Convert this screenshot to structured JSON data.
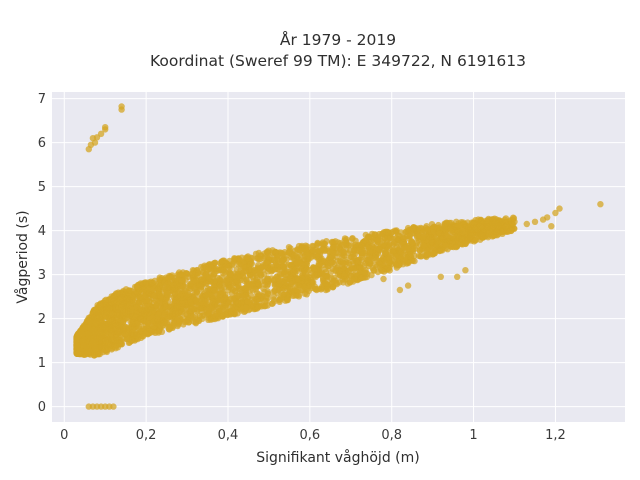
{
  "chart_data": {
    "type": "scatter",
    "title_line1": "År 1979 - 2019",
    "title_line2": "Koordinat (Sweref 99 TM): E 349722, N 6191613",
    "xlabel": "Signifikant våghöjd (m)",
    "ylabel": "Vågperiod (s)",
    "xlim": [
      -0.03,
      1.37
    ],
    "ylim": [
      -0.35,
      7.15
    ],
    "x_ticks": [
      0,
      0.2,
      0.4,
      0.6,
      0.8,
      1,
      1.2
    ],
    "x_tick_labels": [
      "0",
      "0,2",
      "0,4",
      "0,6",
      "0,8",
      "1",
      "1,2"
    ],
    "y_ticks": [
      0,
      1,
      2,
      3,
      4,
      5,
      6,
      7
    ],
    "y_tick_labels": [
      "0",
      "1",
      "2",
      "3",
      "4",
      "5",
      "6",
      "7"
    ],
    "grid": true,
    "colors": {
      "marker": "#d4a524",
      "plot_bg": "#e9e9f1",
      "grid": "#ffffff"
    },
    "bulk_trend": {
      "x": [
        0.03,
        0.08,
        0.12,
        0.2,
        0.3,
        0.4,
        0.5,
        0.6,
        0.7,
        0.8,
        0.9,
        1.0,
        1.1
      ],
      "y_low": [
        1.2,
        1.15,
        1.3,
        1.6,
        1.85,
        2.05,
        2.3,
        2.55,
        2.8,
        3.1,
        3.45,
        3.75,
        4.0
      ],
      "y_high": [
        1.6,
        2.3,
        2.55,
        2.85,
        3.1,
        3.35,
        3.55,
        3.7,
        3.85,
        4.0,
        4.15,
        4.25,
        4.3
      ]
    },
    "outliers": [
      {
        "x": 0.06,
        "y": 5.85
      },
      {
        "x": 0.065,
        "y": 5.95
      },
      {
        "x": 0.07,
        "y": 6.1
      },
      {
        "x": 0.075,
        "y": 6.0
      },
      {
        "x": 0.08,
        "y": 6.12
      },
      {
        "x": 0.09,
        "y": 6.2
      },
      {
        "x": 0.1,
        "y": 6.3
      },
      {
        "x": 0.1,
        "y": 6.35
      },
      {
        "x": 0.14,
        "y": 6.75
      },
      {
        "x": 0.14,
        "y": 6.82
      },
      {
        "x": 0.06,
        "y": 0
      },
      {
        "x": 0.07,
        "y": 0
      },
      {
        "x": 0.08,
        "y": 0
      },
      {
        "x": 0.09,
        "y": 0
      },
      {
        "x": 0.1,
        "y": 0
      },
      {
        "x": 0.11,
        "y": 0
      },
      {
        "x": 0.12,
        "y": 0
      },
      {
        "x": 0.98,
        "y": 3.1
      },
      {
        "x": 0.96,
        "y": 2.95
      },
      {
        "x": 0.92,
        "y": 2.95
      },
      {
        "x": 0.82,
        "y": 2.65
      },
      {
        "x": 0.84,
        "y": 2.75
      },
      {
        "x": 0.78,
        "y": 2.9
      },
      {
        "x": 1.06,
        "y": 4.1
      },
      {
        "x": 1.1,
        "y": 4.2
      },
      {
        "x": 1.15,
        "y": 4.2
      },
      {
        "x": 1.17,
        "y": 4.25
      },
      {
        "x": 1.18,
        "y": 4.3
      },
      {
        "x": 1.2,
        "y": 4.4
      },
      {
        "x": 1.21,
        "y": 4.5
      },
      {
        "x": 1.31,
        "y": 4.6
      },
      {
        "x": 1.19,
        "y": 4.1
      },
      {
        "x": 1.13,
        "y": 4.15
      }
    ]
  }
}
